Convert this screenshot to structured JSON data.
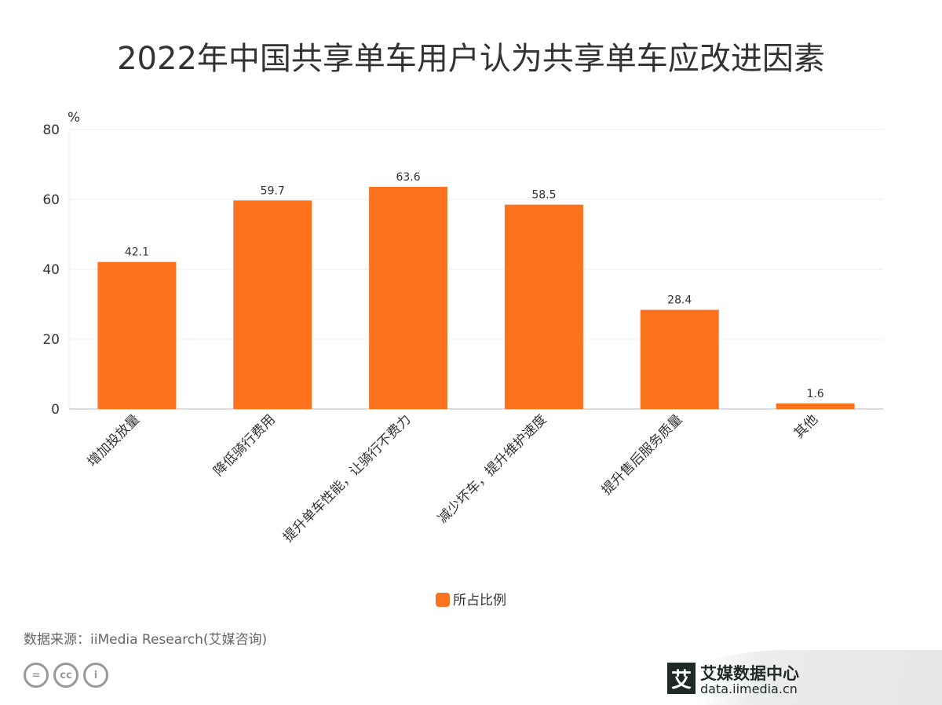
{
  "title": "2022年中国共享单车用户认为共享单车应改进因素",
  "chart_data": {
    "type": "bar",
    "title": "2022年中国共享单车用户认为共享单车应改进因素",
    "ylabel": "%",
    "xlabel": "",
    "ylim": [
      0,
      80
    ],
    "yticks": [
      0,
      20,
      40,
      60,
      80
    ],
    "grid": true,
    "categories": [
      "增加投放量",
      "降低骑行费用",
      "提升单车性能，让骑行不费力",
      "减少坏车，提升维护速度",
      "提升售后服务质量",
      "其他"
    ],
    "series": [
      {
        "name": "所占比例",
        "values": [
          42.1,
          59.7,
          63.6,
          58.5,
          28.4,
          1.6
        ],
        "color": "#FC721D"
      }
    ],
    "legend": "bottom-center"
  },
  "source": "数据来源：iiMedia Research(艾媒咨询)",
  "brand": {
    "logo": "艾",
    "name": "艾媒数据中心",
    "url": "data.iimedia.cn"
  },
  "cc_icons": [
    "=",
    "cc",
    "i"
  ]
}
